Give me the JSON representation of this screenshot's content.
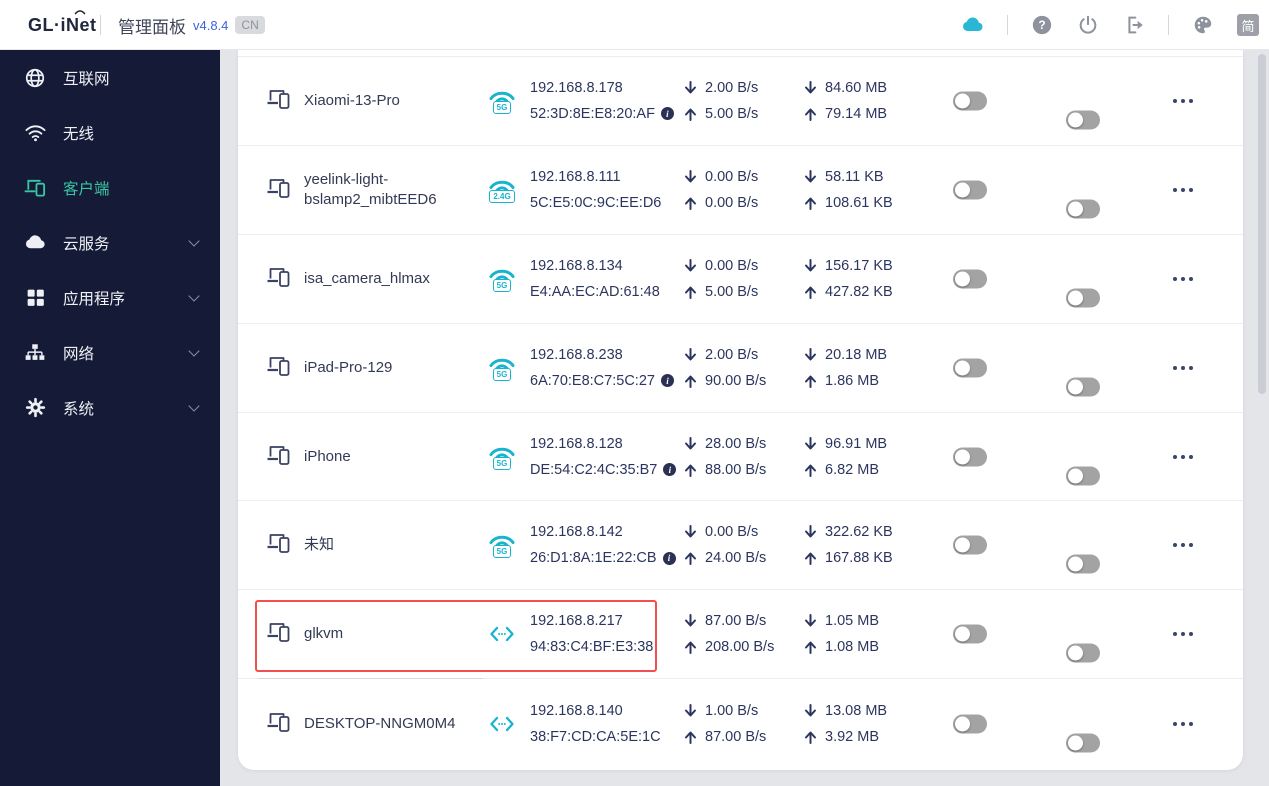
{
  "header": {
    "logo": "GL·iNet",
    "title": "管理面板",
    "version": "v4.8.4",
    "region_badge": "CN",
    "lang_badge": "简",
    "icons": [
      "cloud-icon",
      "help-icon",
      "power-icon",
      "logout-icon",
      "theme-icon"
    ]
  },
  "sidebar": {
    "items": [
      {
        "label": "互联网",
        "icon": "internet-icon",
        "active": false,
        "expandable": false
      },
      {
        "label": "无线",
        "icon": "wireless-icon",
        "active": false,
        "expandable": false
      },
      {
        "label": "客户端",
        "icon": "clients-icon",
        "active": true,
        "expandable": false
      },
      {
        "label": "云服务",
        "icon": "cloud-icon",
        "active": false,
        "expandable": true
      },
      {
        "label": "应用程序",
        "icon": "apps-icon",
        "active": false,
        "expandable": true
      },
      {
        "label": "网络",
        "icon": "network-icon",
        "active": false,
        "expandable": true
      },
      {
        "label": "系统",
        "icon": "system-icon",
        "active": false,
        "expandable": true
      }
    ]
  },
  "clients": [
    {
      "name": "Xiaomi-13-Pro",
      "connection": "wifi",
      "band": "5G",
      "ip": "192.168.8.178",
      "mac": "52:3D:8E:E8:20:AF",
      "has_info": true,
      "down_speed": "2.00 B/s",
      "up_speed": "5.00 B/s",
      "down_total": "84.60 MB",
      "up_total": "79.14 MB",
      "toggle1": false,
      "toggle2": false,
      "highlighted": false
    },
    {
      "name": "yeelink-light-bslamp2_mibtEED6",
      "connection": "wifi",
      "band": "2.4G",
      "ip": "192.168.8.111",
      "mac": "5C:E5:0C:9C:EE:D6",
      "has_info": false,
      "down_speed": "0.00 B/s",
      "up_speed": "0.00 B/s",
      "down_total": "58.11 KB",
      "up_total": "108.61 KB",
      "toggle1": false,
      "toggle2": false,
      "highlighted": false
    },
    {
      "name": "isa_camera_hlmax",
      "connection": "wifi",
      "band": "5G",
      "ip": "192.168.8.134",
      "mac": "E4:AA:EC:AD:61:48",
      "has_info": false,
      "down_speed": "0.00 B/s",
      "up_speed": "5.00 B/s",
      "down_total": "156.17 KB",
      "up_total": "427.82 KB",
      "toggle1": false,
      "toggle2": false,
      "highlighted": false
    },
    {
      "name": "iPad-Pro-129",
      "connection": "wifi",
      "band": "5G",
      "ip": "192.168.8.238",
      "mac": "6A:70:E8:C7:5C:27",
      "has_info": true,
      "down_speed": "2.00 B/s",
      "up_speed": "90.00 B/s",
      "down_total": "20.18 MB",
      "up_total": "1.86 MB",
      "toggle1": false,
      "toggle2": false,
      "highlighted": false
    },
    {
      "name": "iPhone",
      "connection": "wifi",
      "band": "5G",
      "ip": "192.168.8.128",
      "mac": "DE:54:C2:4C:35:B7",
      "has_info": true,
      "down_speed": "28.00 B/s",
      "up_speed": "88.00 B/s",
      "down_total": "96.91 MB",
      "up_total": "6.82 MB",
      "toggle1": false,
      "toggle2": false,
      "highlighted": false
    },
    {
      "name": "未知",
      "connection": "wifi",
      "band": "5G",
      "ip": "192.168.8.142",
      "mac": "26:D1:8A:1E:22:CB",
      "has_info": true,
      "down_speed": "0.00 B/s",
      "up_speed": "24.00 B/s",
      "down_total": "322.62 KB",
      "up_total": "167.88 KB",
      "toggle1": false,
      "toggle2": false,
      "highlighted": false
    },
    {
      "name": "glkvm",
      "connection": "lan",
      "band": null,
      "ip": "192.168.8.217",
      "mac": "94:83:C4:BF:E3:38",
      "has_info": false,
      "down_speed": "87.00 B/s",
      "up_speed": "208.00 B/s",
      "down_total": "1.05 MB",
      "up_total": "1.08 MB",
      "toggle1": false,
      "toggle2": false,
      "highlighted": true
    },
    {
      "name": "DESKTOP-NNGM0M4",
      "connection": "lan",
      "band": null,
      "ip": "192.168.8.140",
      "mac": "38:F7:CD:CA:5E:1C",
      "has_info": false,
      "down_speed": "1.00 B/s",
      "up_speed": "87.00 B/s",
      "down_total": "13.08 MB",
      "up_total": "3.92 MB",
      "toggle1": false,
      "toggle2": false,
      "highlighted": false
    }
  ],
  "colors": {
    "sidebar_bg": "#151b36",
    "active_item": "#38c6a3",
    "connection_cyan": "#18b4cd",
    "text_navy": "#2c355e",
    "annotation_red": "#f25050",
    "toggle_off": "#a3a3a3",
    "topbar_cloud": "#29b7d3"
  }
}
